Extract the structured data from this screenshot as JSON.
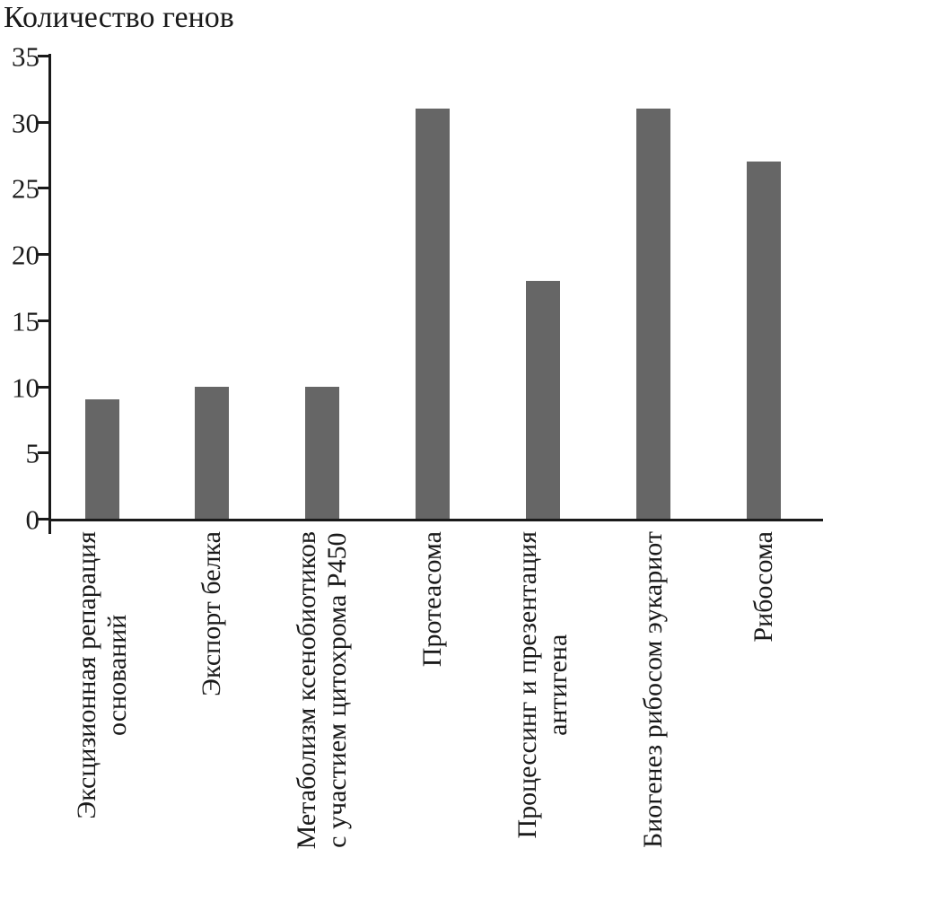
{
  "chart_data": {
    "type": "bar",
    "title": "Количество генов",
    "xlabel": "",
    "ylabel": "Количество генов",
    "ylim": [
      0,
      35
    ],
    "yticks": [
      0,
      5,
      10,
      15,
      20,
      25,
      30,
      35
    ],
    "grid": false,
    "legend": "none",
    "bar_color": "#666666",
    "axis_color": "#1a1a1a",
    "categories": [
      [
        "Эксцизионная репарация",
        "оснований"
      ],
      [
        "Экспорт белка"
      ],
      [
        "Метаболизм ксенобиотиков",
        "с участием цитохрома P450"
      ],
      [
        "Протеасома"
      ],
      [
        "Процессинг и презентация",
        "антигена"
      ],
      [
        "Биогенез рибосом эукариот"
      ],
      [
        "Рибосома"
      ]
    ],
    "values": [
      9,
      10,
      10,
      31,
      18,
      31,
      27
    ]
  }
}
